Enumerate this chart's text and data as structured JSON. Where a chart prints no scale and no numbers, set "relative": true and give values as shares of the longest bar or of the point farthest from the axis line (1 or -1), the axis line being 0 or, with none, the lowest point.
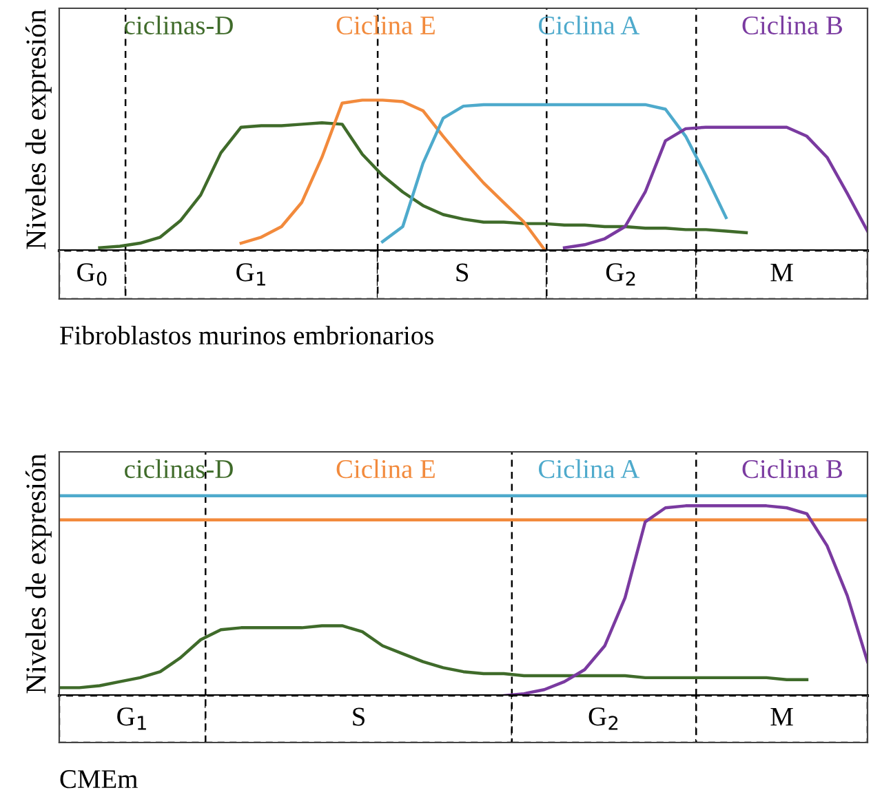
{
  "chart_data": [
    {
      "type": "line",
      "relative": true,
      "ylabel": "Niveles de expresión",
      "legend": "top",
      "marker": "none",
      "line_style": "solid",
      "categories": [
        null,
        null,
        null,
        null,
        null,
        null,
        null,
        null,
        null,
        null,
        null,
        null,
        null,
        null,
        null,
        null,
        null,
        null,
        null,
        null,
        null,
        null,
        null,
        null,
        null,
        null,
        null,
        null,
        null,
        null,
        null,
        null,
        null,
        null,
        null,
        null,
        null,
        null,
        null,
        null,
        null
      ],
      "series": [
        {
          "name": "ciclinas-D",
          "color": "#3f6b2a",
          "values": [
            null,
            null,
            0.02,
            0.03,
            0.05,
            0.09,
            0.2,
            0.37,
            0.65,
            0.82,
            0.83,
            0.83,
            0.84,
            0.85,
            0.84,
            0.64,
            0.5,
            0.39,
            0.3,
            0.24,
            0.21,
            0.19,
            0.19,
            0.18,
            0.18,
            0.17,
            0.17,
            0.16,
            0.16,
            0.15,
            0.15,
            0.14,
            0.14,
            0.13,
            0.12,
            null,
            null,
            null,
            null,
            null,
            null
          ]
        },
        {
          "name": "Ciclina E",
          "color": "#f28a3c",
          "values": [
            null,
            null,
            null,
            null,
            null,
            null,
            null,
            null,
            null,
            0.05,
            0.09,
            0.16,
            0.32,
            0.62,
            0.98,
            1.0,
            1.0,
            0.99,
            0.93,
            0.76,
            0.6,
            0.45,
            0.32,
            0.19,
            0.01,
            null,
            null,
            null,
            null,
            null,
            null,
            null,
            null,
            null,
            null,
            null,
            null,
            null,
            null,
            null,
            null
          ]
        },
        {
          "name": "Ciclina A",
          "color": "#4eaacc",
          "values": [
            null,
            null,
            null,
            null,
            null,
            null,
            null,
            null,
            null,
            null,
            null,
            null,
            null,
            null,
            null,
            null,
            0.06,
            0.16,
            0.58,
            0.88,
            0.96,
            0.97,
            0.97,
            0.97,
            0.97,
            0.97,
            0.97,
            0.97,
            0.97,
            0.97,
            0.94,
            0.76,
            0.5,
            0.22,
            null,
            null,
            null,
            null,
            null,
            null,
            null
          ]
        },
        {
          "name": "Ciclina B",
          "color": "#7a3aa0",
          "values": [
            null,
            null,
            null,
            null,
            null,
            null,
            null,
            null,
            null,
            null,
            null,
            null,
            null,
            null,
            null,
            null,
            null,
            null,
            null,
            null,
            null,
            null,
            null,
            null,
            null,
            0.02,
            0.04,
            0.08,
            0.16,
            0.39,
            0.73,
            0.81,
            0.82,
            0.82,
            0.82,
            0.82,
            0.82,
            0.76,
            0.62,
            0.38,
            0.13
          ]
        }
      ]
    },
    {
      "type": "bar",
      "relative": true,
      "orientation": "horizontal",
      "stacked": true,
      "xlabel": "Fibroblastos murinos embrionarios",
      "categories": [
        null
      ],
      "series": [
        {
          "name": "G$_{0}$",
          "color": "#ffffff",
          "values": [
            0.082
          ]
        },
        {
          "name": "G$_{1}$",
          "color": "#ffffff",
          "values": [
            0.312
          ]
        },
        {
          "name": "S",
          "color": "#ffffff",
          "values": [
            0.209
          ]
        },
        {
          "name": "G$_{2}$",
          "color": "#ffffff",
          "values": [
            0.185
          ]
        },
        {
          "name": "M",
          "color": "#ffffff",
          "values": [
            0.212
          ]
        }
      ]
    },
    {
      "type": "line",
      "relative": true,
      "ylabel": "Niveles de expresión",
      "legend": "top",
      "marker": "none",
      "line_style": "solid",
      "categories": [
        null,
        null,
        null,
        null,
        null,
        null,
        null,
        null,
        null,
        null,
        null,
        null,
        null,
        null,
        null,
        null,
        null,
        null,
        null,
        null,
        null,
        null,
        null,
        null,
        null,
        null,
        null,
        null,
        null,
        null,
        null,
        null,
        null,
        null,
        null,
        null,
        null,
        null,
        null,
        null,
        null
      ],
      "series": [
        {
          "name": "ciclinas-D",
          "color": "#3f6b2a",
          "values": [
            0.04,
            0.04,
            0.05,
            0.07,
            0.09,
            0.12,
            0.19,
            0.28,
            0.33,
            0.34,
            0.34,
            0.34,
            0.34,
            0.35,
            0.35,
            0.32,
            0.25,
            0.21,
            0.17,
            0.14,
            0.12,
            0.11,
            0.11,
            0.1,
            0.1,
            0.1,
            0.1,
            0.1,
            0.1,
            0.09,
            0.09,
            0.09,
            0.09,
            0.09,
            0.09,
            0.09,
            0.08,
            0.08,
            null,
            null,
            null
          ]
        },
        {
          "name": "Ciclina E",
          "color": "#f28a3c",
          "values": [
            0.88,
            0.88,
            0.88,
            0.88,
            0.88,
            0.88,
            0.88,
            0.88,
            0.88,
            0.88,
            0.88,
            0.88,
            0.88,
            0.88,
            0.88,
            0.88,
            0.88,
            0.88,
            0.88,
            0.88,
            0.88,
            0.88,
            0.88,
            0.88,
            0.88,
            0.88,
            0.88,
            0.88,
            0.88,
            0.88,
            0.88,
            0.88,
            0.88,
            0.88,
            0.88,
            0.88,
            0.88,
            0.88,
            0.88,
            0.88,
            0.88
          ]
        },
        {
          "name": "Ciclina A",
          "color": "#4eaacc",
          "values": [
            1.0,
            1.0,
            1.0,
            1.0,
            1.0,
            1.0,
            1.0,
            1.0,
            1.0,
            1.0,
            1.0,
            1.0,
            1.0,
            1.0,
            1.0,
            1.0,
            1.0,
            1.0,
            1.0,
            1.0,
            1.0,
            1.0,
            1.0,
            1.0,
            1.0,
            1.0,
            1.0,
            1.0,
            1.0,
            1.0,
            1.0,
            1.0,
            1.0,
            1.0,
            1.0,
            1.0,
            1.0,
            1.0,
            1.0,
            1.0,
            1.0
          ]
        },
        {
          "name": "Ciclina B",
          "color": "#7a3aa0",
          "values": [
            null,
            null,
            null,
            null,
            null,
            null,
            null,
            null,
            null,
            null,
            null,
            null,
            null,
            null,
            null,
            null,
            null,
            null,
            null,
            null,
            null,
            null,
            0.0,
            0.01,
            0.03,
            0.07,
            0.13,
            0.25,
            0.49,
            0.87,
            0.94,
            0.95,
            0.95,
            0.95,
            0.95,
            0.95,
            0.94,
            0.91,
            0.75,
            0.5,
            0.17
          ]
        }
      ]
    },
    {
      "type": "bar",
      "relative": true,
      "orientation": "horizontal",
      "stacked": true,
      "xlabel": "CMEm",
      "categories": [
        null
      ],
      "series": [
        {
          "name": "G$_{1}$",
          "color": "#ffffff",
          "values": [
            0.181
          ]
        },
        {
          "name": "S",
          "color": "#ffffff",
          "values": [
            0.379
          ]
        },
        {
          "name": "G$_{2}$",
          "color": "#ffffff",
          "values": [
            0.228
          ]
        },
        {
          "name": "M",
          "color": "#ffffff",
          "values": [
            0.212
          ]
        }
      ]
    }
  ]
}
